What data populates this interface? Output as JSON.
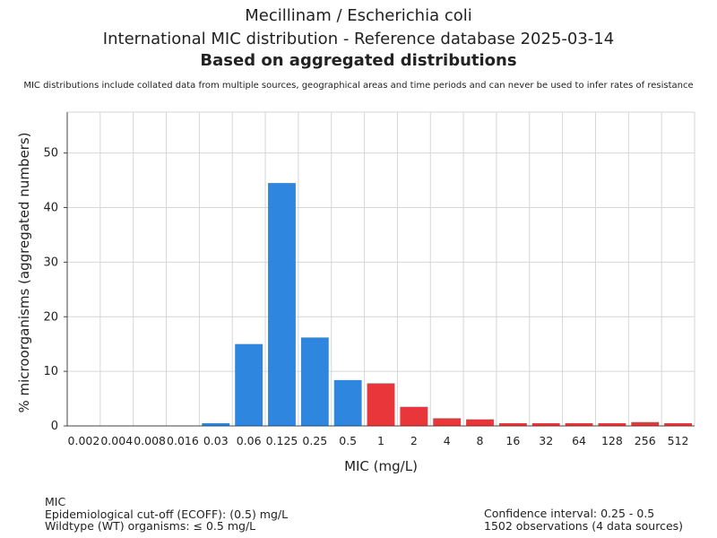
{
  "header": {
    "title_line1": "Mecillinam / Escherichia coli",
    "title_line2": "International MIC distribution - Reference database 2025-03-14",
    "subtitle": "Based on aggregated distributions",
    "note": "MIC distributions include collated data from multiple sources, geographical areas and time periods and can never be used to infer rates of resistance"
  },
  "chart_data": {
    "type": "bar",
    "xlabel": "MIC (mg/L)",
    "ylabel": "% microorganisms (aggregated numbers)",
    "ylim": [
      0,
      57.5
    ],
    "yticks": [
      0,
      10,
      20,
      30,
      40,
      50
    ],
    "grid": true,
    "categories": [
      "0.002",
      "0.004",
      "0.008",
      "0.016",
      "0.03",
      "0.06",
      "0.125",
      "0.25",
      "0.5",
      "1",
      "2",
      "4",
      "8",
      "16",
      "32",
      "64",
      "128",
      "256",
      "512"
    ],
    "values": [
      0,
      0,
      0,
      0,
      0.5,
      15.0,
      44.5,
      16.2,
      8.4,
      7.8,
      3.5,
      1.4,
      1.2,
      0.5,
      0.5,
      0.5,
      0.5,
      0.7,
      0.5
    ],
    "colors": {
      "wildtype": "#2f86de",
      "non_wildtype": "#e8363a"
    },
    "ecoff": "0.5"
  },
  "footer": {
    "left": [
      "MIC",
      "Epidemiological cut-off (ECOFF): (0.5) mg/L",
      "Wildtype (WT) organisms: ≤ 0.5 mg/L"
    ],
    "right": [
      "Confidence interval: 0.25 - 0.5",
      "1502 observations (4 data sources)"
    ]
  }
}
